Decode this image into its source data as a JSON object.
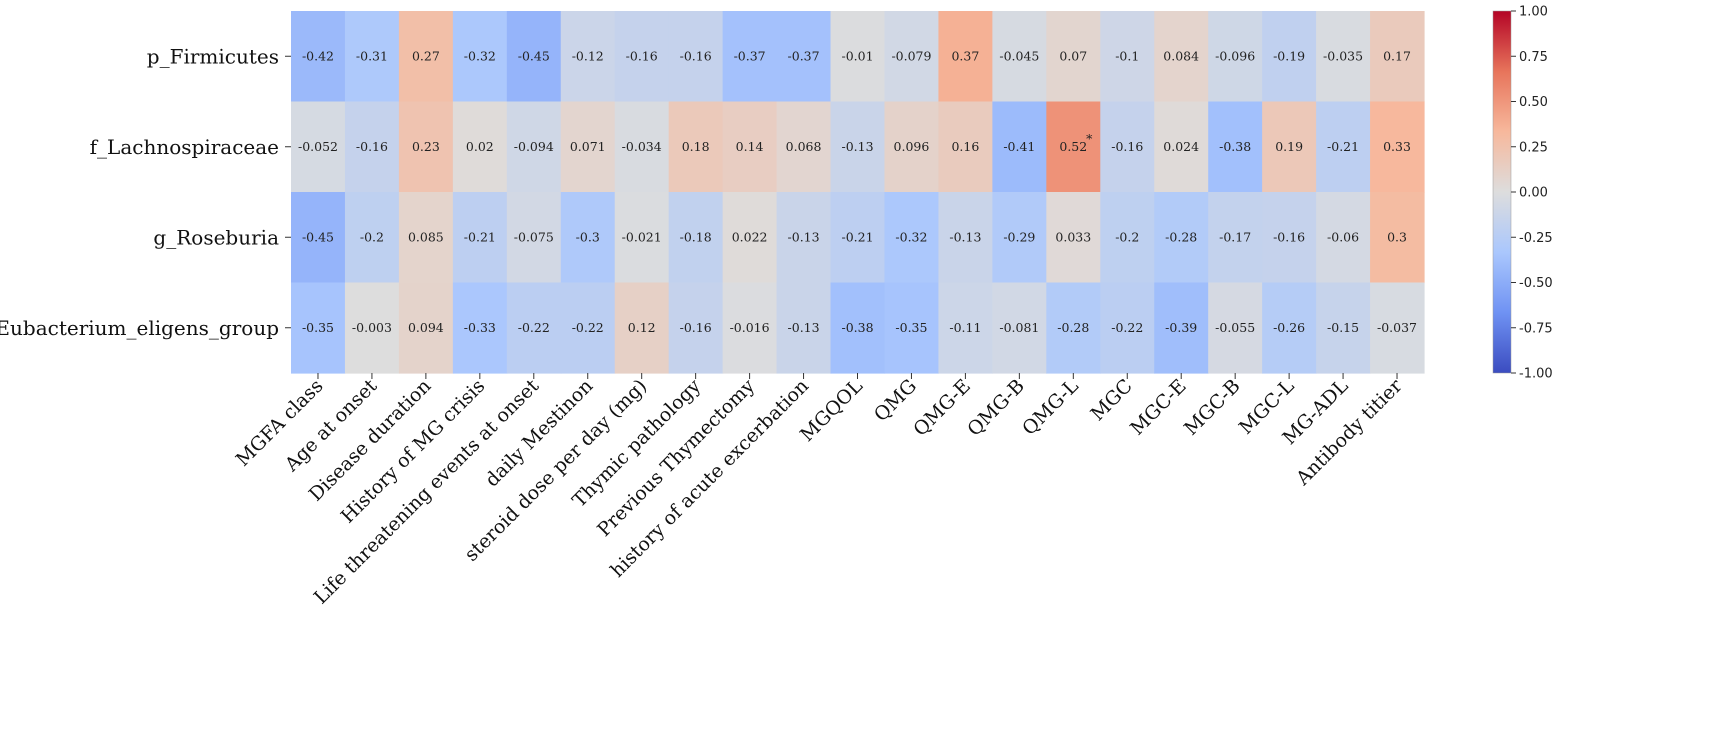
{
  "chart_data": {
    "type": "heatmap",
    "rows": [
      "p_Firmicutes",
      "f_Lachnospiraceae",
      "g_Roseburia",
      "g_Eubacterium_eligens_group"
    ],
    "columns": [
      "MGFA class",
      "Age at onset",
      "Disease duration",
      "History of MG crisis",
      "Life threatening events at onset",
      "daily Mestinon",
      "steroid dose per day (mg)",
      "Thymic pathology",
      "Previous Thymectomy",
      "history of acute excerbation",
      "MGQOL",
      "QMG",
      "QMG-E",
      "QMG-B",
      "QMG-L",
      "MGC",
      "MGC-E",
      "MGC-B",
      "MGC-L",
      "MG-ADL",
      "Antibody titier"
    ],
    "values": [
      [
        -0.42,
        -0.31,
        0.27,
        -0.32,
        -0.45,
        -0.12,
        -0.16,
        -0.16,
        -0.37,
        -0.37,
        -0.01,
        -0.079,
        0.37,
        -0.045,
        0.07,
        -0.1,
        0.084,
        -0.096,
        -0.19,
        -0.035,
        0.17
      ],
      [
        -0.052,
        -0.16,
        0.23,
        0.02,
        -0.094,
        0.071,
        -0.034,
        0.18,
        0.14,
        0.068,
        -0.13,
        0.096,
        0.16,
        -0.41,
        0.52,
        -0.16,
        0.024,
        -0.38,
        0.19,
        -0.21,
        0.33
      ],
      [
        -0.45,
        -0.2,
        0.085,
        -0.21,
        -0.075,
        -0.3,
        -0.021,
        -0.18,
        0.022,
        -0.13,
        -0.21,
        -0.32,
        -0.13,
        -0.29,
        0.033,
        -0.2,
        -0.28,
        -0.17,
        -0.16,
        -0.06,
        0.3
      ],
      [
        -0.35,
        -0.003,
        0.094,
        -0.33,
        -0.22,
        -0.22,
        0.12,
        -0.16,
        -0.016,
        -0.13,
        -0.38,
        -0.35,
        -0.11,
        -0.081,
        -0.28,
        -0.22,
        -0.39,
        -0.055,
        -0.26,
        -0.15,
        -0.037
      ]
    ],
    "labels": [
      [
        "-0.42",
        "-0.31",
        "0.27",
        "-0.32",
        "-0.45",
        "-0.12",
        "-0.16",
        "-0.16",
        "-0.37",
        "-0.37",
        "-0.01",
        "-0.079",
        "0.37",
        "-0.045",
        "0.07",
        "-0.1",
        "0.084",
        "-0.096",
        "-0.19",
        "-0.035",
        "0.17"
      ],
      [
        "-0.052",
        "-0.16",
        "0.23",
        "0.02",
        "-0.094",
        "0.071",
        "-0.034",
        "0.18",
        "0.14",
        "0.068",
        "-0.13",
        "0.096",
        "0.16",
        "-0.41",
        "0.52",
        "-0.16",
        "0.024",
        "-0.38",
        "0.19",
        "-0.21",
        "0.33"
      ],
      [
        "-0.45",
        "-0.2",
        "0.085",
        "-0.21",
        "-0.075",
        "-0.3",
        "-0.021",
        "-0.18",
        "0.022",
        "-0.13",
        "-0.21",
        "-0.32",
        "-0.13",
        "-0.29",
        "0.033",
        "-0.2",
        "-0.28",
        "-0.17",
        "-0.16",
        "-0.06",
        "0.3"
      ],
      [
        "-0.35",
        "-0.003",
        "0.094",
        "-0.33",
        "-0.22",
        "-0.22",
        "0.12",
        "-0.16",
        "-0.016",
        "-0.13",
        "-0.38",
        "-0.35",
        "-0.11",
        "-0.081",
        "-0.28",
        "-0.22",
        "-0.39",
        "-0.055",
        "-0.26",
        "-0.15",
        "-0.037"
      ]
    ],
    "annotations": [
      {
        "row": 1,
        "col": 14,
        "text": "*"
      }
    ],
    "colormap": "coolwarm",
    "colormap_stops": [
      "#3b4cc0",
      "#6f92f3",
      "#aac7fd",
      "#dddddd",
      "#f7b89c",
      "#e7745b",
      "#b40426"
    ],
    "vmin": -1.0,
    "vmax": 1.0,
    "colorbar_ticks": [
      "1.00",
      "0.75",
      "0.50",
      "0.25",
      "0.00",
      "-0.25",
      "-0.50",
      "-0.75",
      "-1.00"
    ],
    "colorbar_tick_values": [
      1.0,
      0.75,
      0.5,
      0.25,
      0.0,
      -0.25,
      -0.5,
      -0.75,
      -1.0
    ]
  }
}
